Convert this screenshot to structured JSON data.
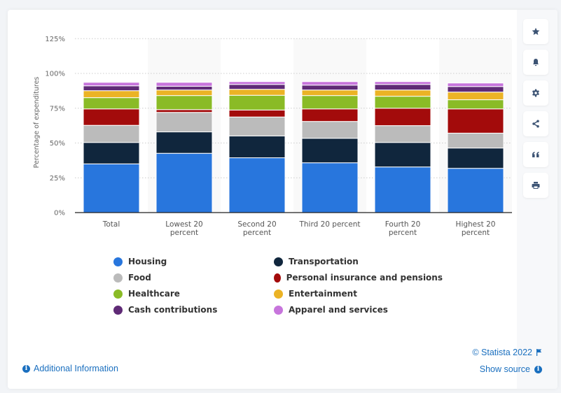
{
  "chart_data": {
    "type": "bar",
    "stacked": true,
    "title": "",
    "xlabel": "",
    "ylabel": "Percentage of expenditures",
    "ylim": [
      0,
      125
    ],
    "yticks": [
      0,
      25,
      50,
      75,
      100,
      125
    ],
    "ytick_labels": [
      "0%",
      "25%",
      "50%",
      "75%",
      "100%",
      "125%"
    ],
    "grid": true,
    "legend_position": "bottom",
    "categories": [
      [
        "Total"
      ],
      [
        "Lowest 20",
        "percent"
      ],
      [
        "Second 20",
        "percent"
      ],
      [
        "Third 20 percent"
      ],
      [
        "Fourth 20",
        "percent"
      ],
      [
        "Highest 20",
        "percent"
      ]
    ],
    "series": [
      {
        "name": "Housing",
        "color": "#2876dd",
        "values": [
          35.0,
          42.6,
          39.4,
          35.8,
          32.8,
          31.8
        ]
      },
      {
        "name": "Transportation",
        "color": "#10263d",
        "values": [
          15.4,
          15.4,
          15.7,
          17.6,
          17.6,
          14.6
        ]
      },
      {
        "name": "Food",
        "color": "#bbbbbb",
        "values": [
          12.3,
          14.0,
          13.6,
          12.1,
          12.1,
          10.7
        ]
      },
      {
        "name": "Personal insurance and pensions",
        "color": "#a30b0b",
        "values": [
          11.8,
          2.0,
          5.0,
          9.0,
          12.5,
          17.4
        ]
      },
      {
        "name": "Healthcare",
        "color": "#8abb26",
        "values": [
          8.1,
          10.1,
          10.6,
          9.6,
          8.6,
          6.6
        ]
      },
      {
        "name": "Entertainment",
        "color": "#ebb325",
        "values": [
          5.0,
          4.0,
          4.3,
          4.0,
          4.5,
          5.5
        ]
      },
      {
        "name": "Cash contributions",
        "color": "#5f2a76",
        "values": [
          3.5,
          2.7,
          3.5,
          3.5,
          4.0,
          4.0
        ]
      },
      {
        "name": "Apparel and services",
        "color": "#c775dc",
        "values": [
          2.5,
          2.8,
          2.0,
          2.5,
          2.0,
          2.5
        ]
      }
    ]
  },
  "legend": {
    "items": [
      {
        "label": "Housing",
        "color": "#2876dd"
      },
      {
        "label": "Transportation",
        "color": "#10263d"
      },
      {
        "label": "Food",
        "color": "#bbbbbb"
      },
      {
        "label": "Personal insurance and pensions",
        "color": "#a30b0b"
      },
      {
        "label": "Healthcare",
        "color": "#8abb26"
      },
      {
        "label": "Entertainment",
        "color": "#ebb325"
      },
      {
        "label": "Cash contributions",
        "color": "#5f2a76"
      },
      {
        "label": "Apparel and services",
        "color": "#c775dc"
      }
    ]
  },
  "sidebar": {
    "buttons": [
      {
        "name": "favorite",
        "icon": "star-icon"
      },
      {
        "name": "notification",
        "icon": "bell-icon"
      },
      {
        "name": "settings",
        "icon": "gear-icon"
      },
      {
        "name": "share",
        "icon": "share-icon"
      },
      {
        "name": "cite",
        "icon": "quote-icon"
      },
      {
        "name": "print",
        "icon": "print-icon"
      }
    ]
  },
  "footer": {
    "copyright": "© Statista 2022",
    "show_source": "Show source",
    "additional_info": "Additional Information",
    "info_glyph": "i"
  }
}
